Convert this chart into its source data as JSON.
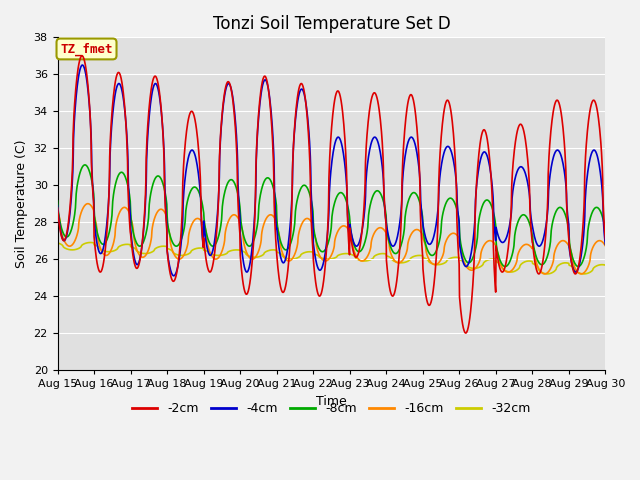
{
  "title": "Tonzi Soil Temperature Set D",
  "xlabel": "Time",
  "ylabel": "Soil Temperature (C)",
  "ylim": [
    20,
    38
  ],
  "n_days": 15,
  "xtick_labels": [
    "Aug 15",
    "Aug 16",
    "Aug 17",
    "Aug 18",
    "Aug 19",
    "Aug 20",
    "Aug 21",
    "Aug 22",
    "Aug 23",
    "Aug 24",
    "Aug 25",
    "Aug 26",
    "Aug 27",
    "Aug 28",
    "Aug 29",
    "Aug 30"
  ],
  "series": {
    "-2cm": {
      "color": "#dd0000",
      "linewidth": 1.2
    },
    "-4cm": {
      "color": "#0000cc",
      "linewidth": 1.2
    },
    "-8cm": {
      "color": "#00aa00",
      "linewidth": 1.2
    },
    "-16cm": {
      "color": "#ff8800",
      "linewidth": 1.2
    },
    "-32cm": {
      "color": "#cccc00",
      "linewidth": 1.2
    }
  },
  "legend_labels": [
    "-2cm",
    "-4cm",
    "-8cm",
    "-16cm",
    "-32cm"
  ],
  "annotation_text": "TZ_fmet",
  "annotation_box_facecolor": "#ffffcc",
  "annotation_box_edgecolor": "#999900",
  "annotation_text_color": "#cc0000",
  "figure_facecolor": "#f2f2f2",
  "plot_facecolor": "#e0e0e0",
  "grid_color": "#ffffff",
  "title_fontsize": 12,
  "axis_label_fontsize": 9,
  "tick_fontsize": 8,
  "peaks_2cm": [
    37.0,
    36.1,
    35.9,
    34.0,
    35.6,
    35.9,
    35.5,
    35.1,
    35.0,
    34.9,
    34.6,
    33.0,
    33.3,
    34.6,
    34.6
  ],
  "troughs_2cm": [
    27.0,
    25.3,
    25.5,
    24.8,
    25.3,
    24.1,
    24.2,
    24.0,
    26.1,
    24.0,
    23.5,
    22.0,
    25.3,
    25.2,
    25.2
  ],
  "peaks_4cm": [
    36.5,
    35.5,
    35.5,
    31.9,
    35.5,
    35.7,
    35.2,
    32.6,
    32.6,
    32.6,
    32.1,
    31.8,
    31.0,
    31.9,
    31.9
  ],
  "troughs_4cm": [
    27.0,
    26.3,
    25.7,
    25.1,
    26.2,
    25.3,
    25.8,
    25.4,
    26.7,
    26.7,
    26.8,
    25.6,
    26.9,
    26.7,
    25.3
  ],
  "peaks_8cm": [
    31.1,
    30.7,
    30.5,
    29.9,
    30.3,
    30.4,
    30.0,
    29.6,
    29.7,
    29.6,
    29.3,
    29.2,
    28.4,
    28.8,
    28.8
  ],
  "troughs_8cm": [
    27.2,
    26.8,
    26.7,
    26.7,
    26.7,
    26.7,
    26.5,
    26.4,
    26.4,
    26.3,
    26.2,
    25.8,
    25.6,
    25.7,
    25.6
  ],
  "peaks_16cm": [
    29.0,
    28.8,
    28.7,
    28.2,
    28.4,
    28.4,
    28.2,
    27.8,
    27.7,
    27.6,
    27.4,
    27.0,
    26.8,
    27.0,
    27.0
  ],
  "troughs_16cm": [
    26.7,
    26.2,
    26.1,
    26.0,
    26.0,
    26.0,
    25.9,
    25.9,
    25.9,
    25.8,
    25.7,
    25.4,
    25.3,
    25.2,
    25.2
  ],
  "peaks_32cm": [
    26.9,
    26.8,
    26.7,
    26.6,
    26.5,
    26.5,
    26.4,
    26.3,
    26.3,
    26.2,
    26.1,
    26.0,
    25.9,
    25.8,
    25.7
  ],
  "troughs_32cm": [
    26.5,
    26.4,
    26.3,
    26.2,
    26.2,
    26.1,
    26.0,
    26.0,
    25.9,
    25.8,
    25.7,
    25.5,
    25.3,
    25.2,
    25.2
  ],
  "phase_2cm": 0.42,
  "phase_4cm": 0.43,
  "phase_8cm": 0.5,
  "phase_16cm": 0.58,
  "phase_32cm": 0.65,
  "pts_per_day": 96
}
